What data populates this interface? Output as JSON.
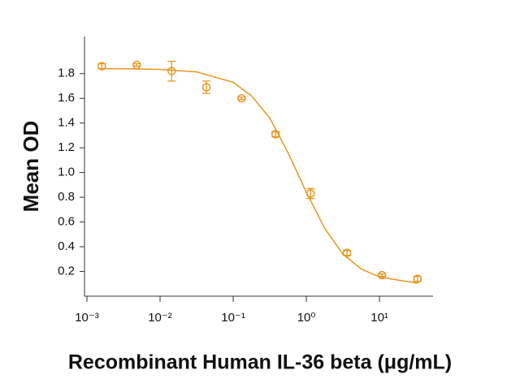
{
  "chart_data": {
    "type": "scatter",
    "xlabel": "Recombinant Human IL-36 beta (μg/mL)",
    "ylabel": "Mean OD",
    "log_x": true,
    "xlim": [
      0.001,
      50
    ],
    "ylim": [
      0,
      2.1
    ],
    "xticks": [
      {
        "value": 0.001,
        "label": "10⁻³"
      },
      {
        "value": 0.01,
        "label": "10⁻²"
      },
      {
        "value": 0.1,
        "label": "10⁻¹"
      },
      {
        "value": 1,
        "label": "10⁰"
      },
      {
        "value": 10,
        "label": "10¹"
      }
    ],
    "yticks": [
      0.2,
      0.4,
      0.6,
      0.8,
      {
        "value": 1,
        "label": "1.0"
      },
      1.2,
      1.4,
      1.6,
      1.8
    ],
    "series": [
      {
        "color": "#e8961e",
        "x": [
          0.0016,
          0.0048,
          0.0144,
          0.043,
          0.13,
          0.38,
          1.14,
          3.6,
          10.8,
          33
        ],
        "values": [
          1.86,
          1.87,
          1.82,
          1.69,
          1.6,
          1.31,
          0.83,
          0.35,
          0.17,
          0.14
        ],
        "errors": [
          0.02,
          0.01,
          0.08,
          0.05,
          0.01,
          0.02,
          0.04,
          0.02,
          0.01,
          0.02
        ]
      },
      {
        "type": "line",
        "color": "#e8961e",
        "x": [
          0.0016,
          0.00316,
          0.01,
          0.0316,
          0.1,
          0.178,
          0.316,
          0.562,
          1,
          1.778,
          3.16,
          5.62,
          10,
          33
        ],
        "values": [
          1.84,
          1.839,
          1.834,
          1.814,
          1.73,
          1.62,
          1.44,
          1.16,
          0.84,
          0.55,
          0.34,
          0.22,
          0.155,
          0.105
        ]
      }
    ]
  }
}
